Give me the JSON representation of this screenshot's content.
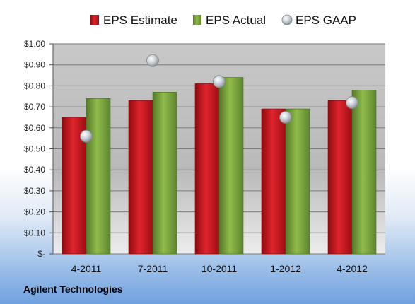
{
  "company": "Agilent Technologies",
  "chart_data": {
    "type": "bar",
    "categories": [
      "4-2011",
      "7-2011",
      "10-2011",
      "1-2012",
      "4-2012"
    ],
    "series": [
      {
        "name": "EPS Estimate",
        "kind": "bar",
        "color": "#c0141c",
        "values": [
          0.65,
          0.73,
          0.81,
          0.69,
          0.73
        ]
      },
      {
        "name": "EPS Actual",
        "kind": "bar",
        "color": "#6f9a2e",
        "values": [
          0.74,
          0.77,
          0.84,
          0.69,
          0.78
        ]
      },
      {
        "name": "EPS GAAP",
        "kind": "scatter",
        "color": "#b8bec6",
        "values": [
          0.56,
          0.92,
          0.82,
          0.65,
          0.72
        ]
      }
    ],
    "ylim": [
      0,
      1.0
    ],
    "yticks": [
      0,
      0.1,
      0.2,
      0.3,
      0.4,
      0.5,
      0.6,
      0.7,
      0.8,
      0.9,
      1.0
    ],
    "ytick_labels": [
      "$-",
      "$0.10",
      "$0.20",
      "$0.30",
      "$0.40",
      "$0.50",
      "$0.60",
      "$0.70",
      "$0.80",
      "$0.90",
      "$1.00"
    ],
    "grid": true,
    "legend_position": "top"
  }
}
